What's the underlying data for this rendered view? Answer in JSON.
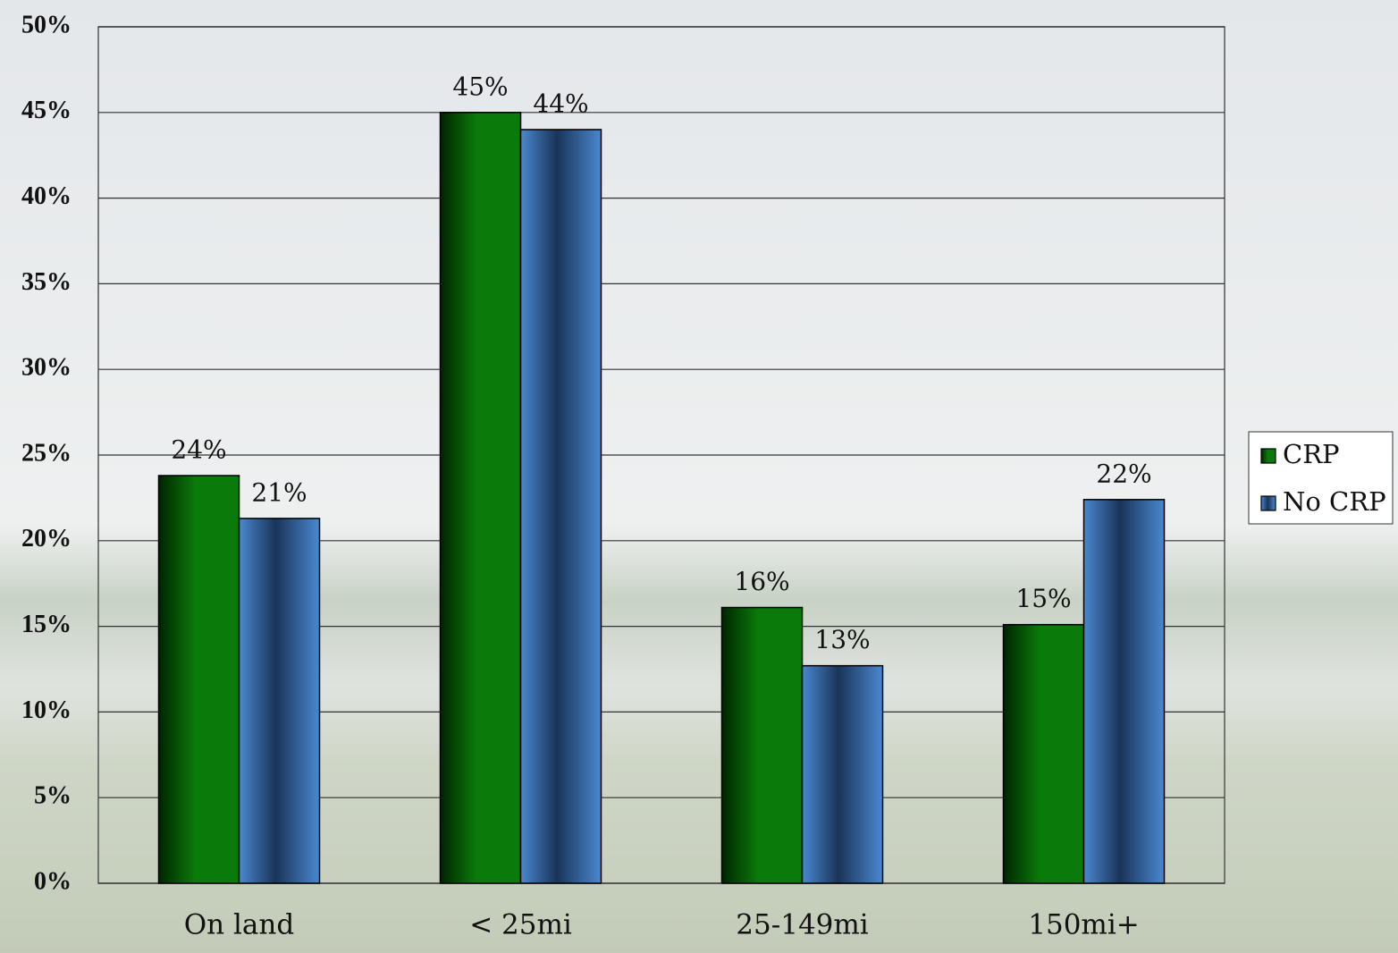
{
  "chart_data": {
    "type": "bar",
    "categories": [
      "On land",
      "< 25mi",
      "25-149mi",
      "150mi+"
    ],
    "series": [
      {
        "name": "CRP",
        "color": "#0a7a0a",
        "values": [
          23.8,
          45.0,
          16.1,
          15.1
        ],
        "value_labels": [
          "24%",
          "45%",
          "16%",
          "15%"
        ]
      },
      {
        "name": "No CRP",
        "color": "#4a88d0",
        "values": [
          21.3,
          44.0,
          12.7,
          22.4
        ],
        "value_labels": [
          "21%",
          "44%",
          "13%",
          "22%"
        ]
      }
    ],
    "ylim": [
      0,
      50
    ],
    "yticks": [
      {
        "value": 0,
        "label": "0%"
      },
      {
        "value": 5,
        "label": "5%"
      },
      {
        "value": 10,
        "label": "10%"
      },
      {
        "value": 15,
        "label": "15%"
      },
      {
        "value": 20,
        "label": "20%"
      },
      {
        "value": 25,
        "label": "25%"
      },
      {
        "value": 30,
        "label": "30%"
      },
      {
        "value": 35,
        "label": "35%"
      },
      {
        "value": 40,
        "label": "40%"
      },
      {
        "value": 45,
        "label": "45%"
      },
      {
        "value": 50,
        "label": "50%"
      }
    ],
    "grid": true,
    "legend": "right"
  }
}
